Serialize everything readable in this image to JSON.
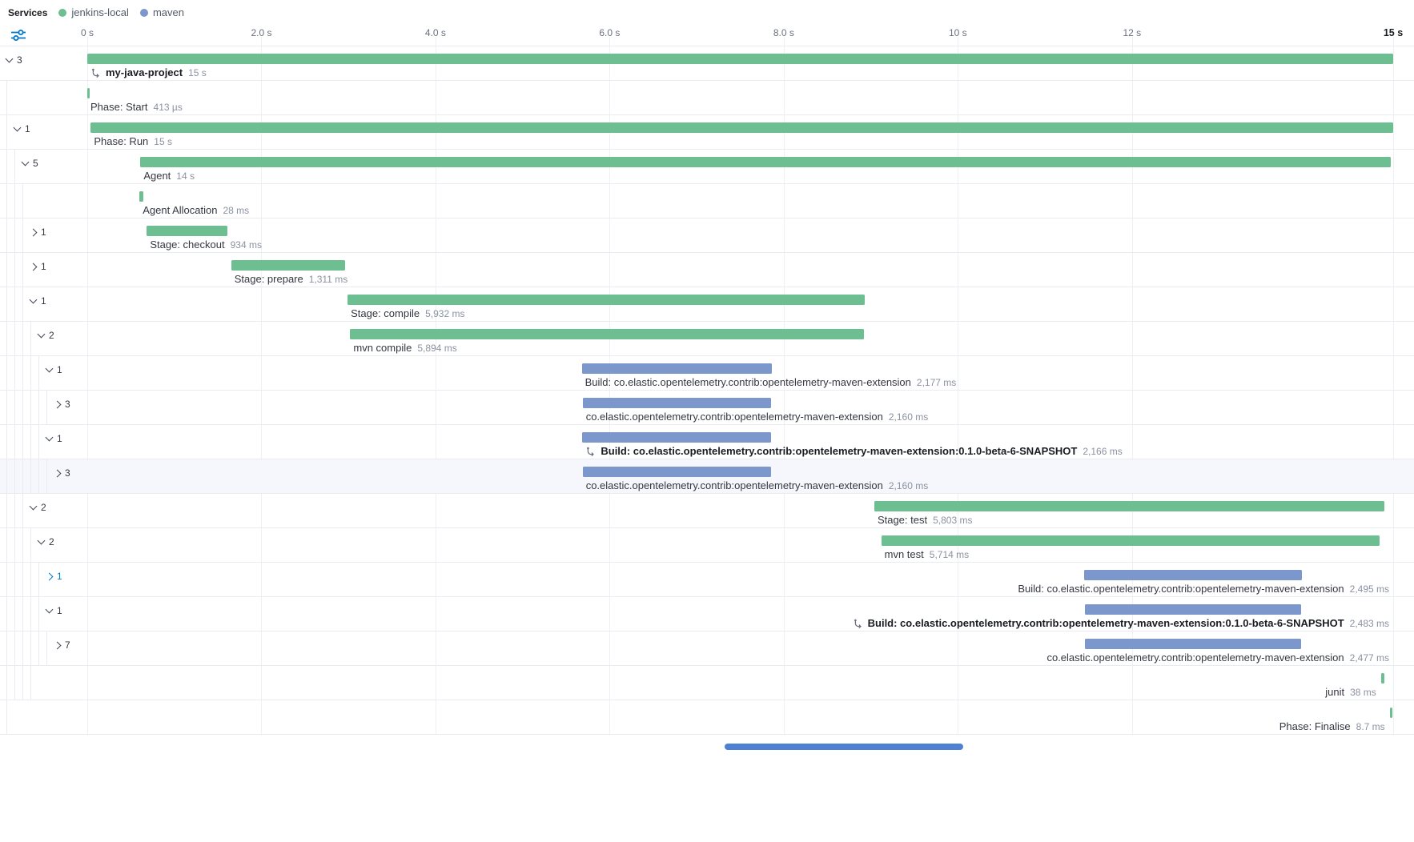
{
  "legend": {
    "title": "Services",
    "services": [
      {
        "name": "jenkins-local",
        "color": "#6dbf92"
      },
      {
        "name": "maven",
        "color": "#7b97cb"
      }
    ]
  },
  "timeline": {
    "ticks": [
      {
        "label": "0 s",
        "s": 0
      },
      {
        "label": "2.0 s",
        "s": 2
      },
      {
        "label": "4.0 s",
        "s": 4
      },
      {
        "label": "6.0 s",
        "s": 6
      },
      {
        "label": "8.0 s",
        "s": 8
      },
      {
        "label": "10 s",
        "s": 10
      },
      {
        "label": "12 s",
        "s": 12
      },
      {
        "label": "15 s",
        "s": 15,
        "bold": true
      }
    ],
    "total_s": 15
  },
  "rows": [
    {
      "label": "my-java-project",
      "duration": "15 s",
      "bold": true,
      "icon": true,
      "depth": 0,
      "chevron": "down",
      "count": "3",
      "service": "jenkins-local",
      "start": 0,
      "end": 15,
      "align": "left"
    },
    {
      "label": "Phase: Start",
      "duration": "413 µs",
      "depth": 1,
      "chevron": null,
      "count": null,
      "service": "jenkins-local",
      "start": 0,
      "end": 0.015,
      "align": "left"
    },
    {
      "label": "Phase: Run",
      "duration": "15 s",
      "depth": 1,
      "chevron": "down",
      "count": "1",
      "service": "jenkins-local",
      "start": 0.04,
      "end": 15,
      "align": "left"
    },
    {
      "label": "Agent",
      "duration": "14 s",
      "depth": 2,
      "chevron": "down",
      "count": "5",
      "service": "jenkins-local",
      "start": 0.61,
      "end": 14.97,
      "align": "left"
    },
    {
      "label": "Agent Allocation",
      "duration": "28 ms",
      "depth": 3,
      "chevron": null,
      "count": null,
      "service": "jenkins-local",
      "start": 0.6,
      "end": 0.64,
      "align": "left"
    },
    {
      "label": "Stage: checkout",
      "duration": "934 ms",
      "depth": 3,
      "chevron": "right",
      "count": "1",
      "service": "jenkins-local",
      "start": 0.684,
      "end": 1.611,
      "align": "left"
    },
    {
      "label": "Stage: prepare",
      "duration": "1,311 ms",
      "depth": 3,
      "chevron": "right",
      "count": "1",
      "service": "jenkins-local",
      "start": 1.653,
      "end": 2.965,
      "align": "left"
    },
    {
      "label": "Stage: compile",
      "duration": "5,932 ms",
      "depth": 3,
      "chevron": "down",
      "count": "1",
      "service": "jenkins-local",
      "start": 2.99,
      "end": 8.93,
      "align": "left"
    },
    {
      "label": "mvn compile",
      "duration": "5,894 ms",
      "depth": 4,
      "chevron": "down",
      "count": "2",
      "service": "jenkins-local",
      "start": 3.02,
      "end": 8.92,
      "align": "left"
    },
    {
      "label": "Build: co.elastic.opentelemetry.contrib:opentelemetry-maven-extension",
      "duration": "2,177 ms",
      "depth": 5,
      "chevron": "down",
      "count": "1",
      "service": "maven",
      "start": 5.68,
      "end": 7.86,
      "align": "left"
    },
    {
      "label": "co.elastic.opentelemetry.contrib:opentelemetry-maven-extension",
      "duration": "2,160 ms",
      "depth": 6,
      "chevron": "right",
      "count": "3",
      "service": "maven",
      "start": 5.69,
      "end": 7.85,
      "align": "left"
    },
    {
      "label": "Build: co.elastic.opentelemetry.contrib:opentelemetry-maven-extension:0.1.0-beta-6-SNAPSHOT",
      "duration": "2,166 ms",
      "bold": true,
      "icon": true,
      "depth": 5,
      "chevron": "down",
      "count": "1",
      "service": "maven",
      "start": 5.687,
      "end": 7.853,
      "align": "left"
    },
    {
      "label": "co.elastic.opentelemetry.contrib:opentelemetry-maven-extension",
      "duration": "2,160 ms",
      "depth": 6,
      "chevron": "right",
      "count": "3",
      "service": "maven",
      "start": 5.69,
      "end": 7.85,
      "align": "left",
      "selected": true
    },
    {
      "label": "Stage: test",
      "duration": "5,803 ms",
      "depth": 3,
      "chevron": "down",
      "count": "2",
      "service": "jenkins-local",
      "start": 9.04,
      "end": 14.9,
      "align": "left"
    },
    {
      "label": "mvn test",
      "duration": "5,714 ms",
      "depth": 4,
      "chevron": "down",
      "count": "2",
      "service": "jenkins-local",
      "start": 9.12,
      "end": 14.84,
      "align": "left"
    },
    {
      "label": "Build: co.elastic.opentelemetry.contrib:opentelemetry-maven-extension",
      "duration": "2,495 ms",
      "depth": 5,
      "chevron": "right",
      "count": "1",
      "service": "maven",
      "start": 11.45,
      "end": 13.95,
      "align": "right",
      "accent": true
    },
    {
      "label": "Build: co.elastic.opentelemetry.contrib:opentelemetry-maven-extension:0.1.0-beta-6-SNAPSHOT",
      "duration": "2,483 ms",
      "bold": true,
      "icon": true,
      "depth": 5,
      "chevron": "down",
      "count": "1",
      "service": "maven",
      "start": 11.46,
      "end": 13.945,
      "align": "right"
    },
    {
      "label": "co.elastic.opentelemetry.contrib:opentelemetry-maven-extension",
      "duration": "2,477 ms",
      "depth": 6,
      "chevron": "right",
      "count": "7",
      "service": "maven",
      "start": 11.462,
      "end": 13.94,
      "align": "right"
    },
    {
      "label": "junit",
      "duration": "38 ms",
      "depth": 4,
      "chevron": null,
      "count": null,
      "service": "jenkins-local",
      "start": 14.86,
      "end": 14.9,
      "align": "right"
    },
    {
      "label": "Phase: Finalise",
      "duration": "8.7 ms",
      "depth": 1,
      "chevron": null,
      "count": null,
      "service": "jenkins-local",
      "start": 14.96,
      "end": 14.99,
      "align": "right"
    }
  ]
}
